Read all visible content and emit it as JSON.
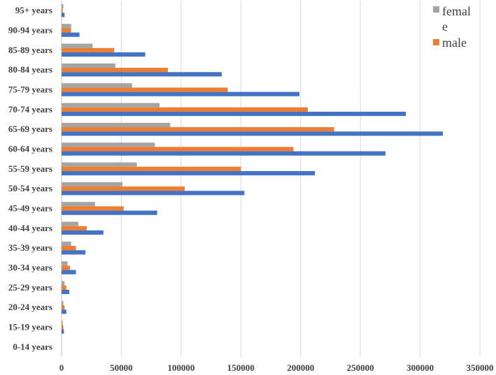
{
  "chart_data": {
    "type": "bar",
    "orientation": "horizontal",
    "categories": [
      "0-14 years",
      "15-19 years",
      "20-24 years",
      "25-29 years",
      "30-34 years",
      "35-39 years",
      "40-44 years",
      "45-49 years",
      "50-54 years",
      "55-59 years",
      "60-64 years",
      "65-69 years",
      "70-74 years",
      "75-79 years",
      "80-84 years",
      "85-89 years",
      "90-94 years",
      "95+ years"
    ],
    "series": [
      {
        "name": "femal e",
        "color": "#a5a5a5",
        "values": [
          0,
          1000,
          1500,
          2500,
          5000,
          8000,
          14000,
          28000,
          51000,
          63000,
          78000,
          91000,
          82000,
          59000,
          45000,
          26000,
          8000,
          1500
        ]
      },
      {
        "name": "male",
        "color": "#ed7d31",
        "values": [
          0,
          1500,
          2500,
          4000,
          7000,
          12000,
          21000,
          52000,
          103000,
          150000,
          194000,
          228000,
          206000,
          139000,
          89000,
          44000,
          8000,
          1000
        ]
      },
      {
        "name": "",
        "color": "#4472c4",
        "values": [
          0,
          2000,
          4000,
          6500,
          12000,
          20000,
          35000,
          80000,
          153000,
          212000,
          271000,
          319000,
          288000,
          199000,
          134000,
          70000,
          15000,
          2500
        ]
      }
    ],
    "x_ticks": [
      "0",
      "50000",
      "100000",
      "150000",
      "200000",
      "250000",
      "300000",
      "350000"
    ],
    "xlim": [
      0,
      350000
    ],
    "grid": "vertical",
    "legend": {
      "placement": "top-right",
      "entries": [
        "femal",
        "e",
        "male"
      ]
    }
  }
}
